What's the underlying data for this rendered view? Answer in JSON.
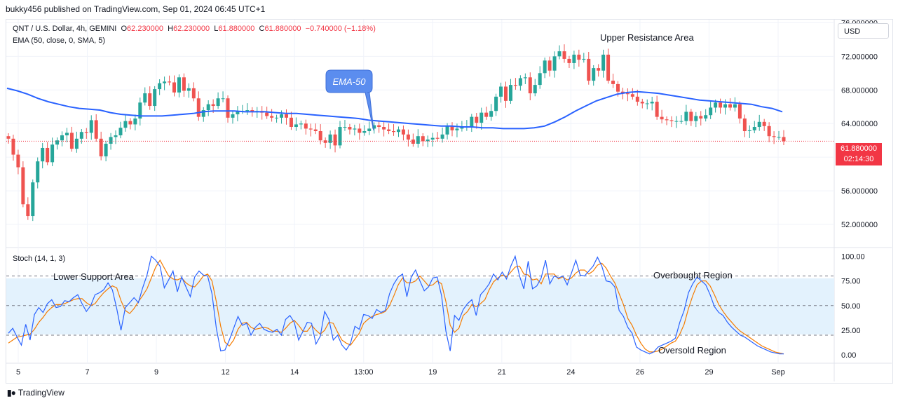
{
  "header": {
    "published": "bukky456 published on TradingView.com, Sep 01, 2024 06:45 UTC+1"
  },
  "currency": "USD",
  "legend": {
    "symbol": "QNT / U.S. Dollar, 4h, GEMINI",
    "o_label": "O",
    "o_value": "62.230000",
    "h_label": "H",
    "h_value": "62.230000",
    "l_label": "L",
    "l_value": "61.880000",
    "c_label": "C",
    "c_value": "61.880000",
    "change": "−0.740000 (−1.18%)",
    "ema": "EMA (50, close, 0, SMA, 5)",
    "stoch": "Stoch (14, 1, 3)"
  },
  "last_price": {
    "value": "61.880000",
    "countdown": "02:14:30"
  },
  "annotations": {
    "upper_resistance": "Upper Resistance Area",
    "ema_callout": "EMA-50",
    "lower_support": "Lower Support Area",
    "overbought": "Overbought Region",
    "oversold": "Oversold Region"
  },
  "footer": {
    "brand": "TradingView",
    "logo": "tv-logo-icon"
  },
  "colors": {
    "up": "#26a69a",
    "down": "#ef5350",
    "ema": "#2962ff",
    "stoch_k": "#2962ff",
    "stoch_d": "#f57c00",
    "band": "#e3f2fd",
    "callout": "#5b8def"
  },
  "chart_data": [
    {
      "type": "candlestick",
      "title": "QNT / U.S. Dollar, 4h, GEMINI",
      "ylim": [
        49.5,
        76.2
      ],
      "y_ticks": [
        "76.000000",
        "72.000000",
        "68.000000",
        "64.000000",
        "60.000000",
        "56.000000",
        "52.000000"
      ],
      "x_ticks": [
        "5",
        "7",
        "9",
        "12",
        "14",
        "13:00",
        "19",
        "21",
        "24",
        "26",
        "29",
        "Sep"
      ],
      "close": [
        62.2,
        60.3,
        58.8,
        54.4,
        53.0,
        57.0,
        59.5,
        61.1,
        59.4,
        61.5,
        62.0,
        62.6,
        62.9,
        61.0,
        62.2,
        63.0,
        62.9,
        64.4,
        62.2,
        60.1,
        61.6,
        62.4,
        62.6,
        63.5,
        64.3,
        63.9,
        64.6,
        66.5,
        67.6,
        66.1,
        68.1,
        68.8,
        69.0,
        68.9,
        67.7,
        69.5,
        67.9,
        68.2,
        67.0,
        64.8,
        65.6,
        66.3,
        66.1,
        67.0,
        67.0,
        64.7,
        65.1,
        65.5,
        65.5,
        65.6,
        65.4,
        65.5,
        65.3,
        64.9,
        64.7,
        64.7,
        65.1,
        64.7,
        63.6,
        63.9,
        64.0,
        63.4,
        63.3,
        63.1,
        62.0,
        61.7,
        62.7,
        61.4,
        63.6,
        63.6,
        63.3,
        63.4,
        62.9,
        63.1,
        63.4,
        63.8,
        63.6,
        63.3,
        63.1,
        63.0,
        63.3,
        62.7,
        62.1,
        61.6,
        62.5,
        61.9,
        62.1,
        62.3,
        62.2,
        62.7,
        63.7,
        63.2,
        63.4,
        63.6,
        63.6,
        64.8,
        64.1,
        65.3,
        64.8,
        65.5,
        67.2,
        68.4,
        66.7,
        68.6,
        68.5,
        69.4,
        69.5,
        67.6,
        68.6,
        70.0,
        71.5,
        70.3,
        72.0,
        72.6,
        71.7,
        71.2,
        72.2,
        71.6,
        71.7,
        69.1,
        70.6,
        70.3,
        72.2,
        69.1,
        68.7,
        67.8,
        67.6,
        67.5,
        67.2,
        66.6,
        66.4,
        66.4,
        66.6,
        64.8,
        64.5,
        64.4,
        64.3,
        64.3,
        64.3,
        65.4,
        64.3,
        64.9,
        64.6,
        65.0,
        65.9,
        66.5,
        65.9,
        66.3,
        65.9,
        66.3,
        64.6,
        63.1,
        63.2,
        63.6,
        64.2,
        63.7,
        62.5,
        62.4,
        62.4,
        61.9
      ],
      "ema": [
        68.2,
        67.9,
        67.5,
        67.0,
        66.6,
        66.3,
        66.0,
        65.8,
        65.7,
        65.6,
        65.3,
        65.1,
        65.0,
        64.9,
        64.9,
        64.9,
        65.0,
        65.1,
        65.2,
        65.4,
        65.5,
        65.5,
        65.5,
        65.4,
        65.4,
        65.4,
        65.3,
        65.2,
        65.2,
        65.1,
        65.0,
        64.9,
        64.8,
        64.7,
        64.6,
        64.4,
        64.3,
        64.2,
        64.1,
        64.0,
        63.9,
        63.8,
        63.7,
        63.7,
        63.6,
        63.6,
        63.5,
        63.5,
        63.4,
        63.4,
        63.4,
        63.5,
        63.7,
        64.2,
        64.8,
        65.5,
        66.1,
        66.7,
        67.1,
        67.5,
        67.7,
        67.8,
        67.7,
        67.6,
        67.4,
        67.2,
        67.0,
        66.8,
        66.7,
        66.6,
        66.5,
        66.4,
        66.3,
        66.0,
        65.8,
        65.4
      ]
    },
    {
      "type": "line",
      "title": "Stoch (14, 1, 3)",
      "ylim": [
        -7,
        106
      ],
      "y_ticks": [
        "100.00",
        "75.00",
        "50.00",
        "25.00",
        "0.00"
      ],
      "levels": [
        80,
        50,
        20
      ],
      "series": [
        {
          "name": "K",
          "values": [
            22,
            27,
            18,
            10,
            31,
            15,
            41,
            48,
            43,
            52,
            56,
            48,
            49,
            55,
            54,
            58,
            61,
            52,
            44,
            50,
            61,
            63,
            66,
            73,
            66,
            47,
            25,
            48,
            53,
            58,
            53,
            68,
            81,
            100,
            96,
            90,
            68,
            76,
            85,
            64,
            79,
            69,
            59,
            79,
            85,
            81,
            80,
            62,
            27,
            4,
            5,
            15,
            27,
            39,
            30,
            32,
            20,
            28,
            32,
            26,
            24,
            23,
            26,
            20,
            36,
            40,
            33,
            15,
            24,
            33,
            32,
            11,
            19,
            44,
            36,
            15,
            20,
            10,
            5,
            12,
            29,
            26,
            41,
            40,
            37,
            46,
            43,
            45,
            62,
            72,
            79,
            82,
            59,
            79,
            86,
            75,
            65,
            69,
            78,
            79,
            60,
            24,
            4,
            40,
            35,
            46,
            52,
            56,
            40,
            61,
            66,
            72,
            82,
            76,
            84,
            77,
            90,
            100,
            80,
            67,
            95,
            67,
            70,
            78,
            96,
            72,
            80,
            78,
            80,
            71,
            83,
            96,
            81,
            80,
            85,
            90,
            99,
            90,
            75,
            74,
            69,
            45,
            39,
            28,
            22,
            8,
            5,
            3,
            1,
            3,
            8,
            10,
            12,
            14,
            17,
            33,
            45,
            63,
            72,
            79,
            75,
            71,
            61,
            49,
            43,
            40,
            33,
            28,
            24,
            20,
            18,
            15,
            12,
            9,
            7,
            5,
            3,
            2,
            1,
            1
          ]
        },
        {
          "name": "D",
          "values": [
            12,
            15,
            18,
            19,
            20,
            21,
            26,
            33,
            38,
            44,
            48,
            51,
            51,
            52,
            54,
            56,
            57,
            57,
            53,
            50,
            52,
            58,
            63,
            67,
            70,
            68,
            55,
            45,
            42,
            47,
            54,
            60,
            67,
            78,
            89,
            96,
            88,
            80,
            77,
            76,
            78,
            73,
            70,
            69,
            74,
            80,
            82,
            75,
            54,
            29,
            13,
            9,
            15,
            26,
            32,
            33,
            28,
            26,
            27,
            28,
            27,
            24,
            24,
            23,
            27,
            32,
            35,
            30,
            24,
            24,
            30,
            25,
            21,
            25,
            33,
            32,
            23,
            15,
            12,
            10,
            16,
            22,
            32,
            36,
            39,
            41,
            42,
            44,
            50,
            60,
            71,
            78,
            73,
            73,
            75,
            80,
            75,
            70,
            71,
            75,
            72,
            54,
            30,
            23,
            27,
            40,
            44,
            51,
            49,
            52,
            56,
            66,
            74,
            78,
            81,
            79,
            84,
            89,
            90,
            82,
            81,
            76,
            77,
            72,
            82,
            82,
            82,
            77,
            79,
            76,
            78,
            83,
            86,
            86,
            82,
            85,
            91,
            93,
            88,
            80,
            73,
            62,
            51,
            37,
            30,
            20,
            12,
            6,
            3,
            3,
            4,
            6,
            9,
            12,
            14,
            21,
            31,
            47,
            60,
            71,
            75,
            75,
            70,
            61,
            51,
            44,
            38,
            33,
            28,
            24,
            21,
            18,
            15,
            12,
            9,
            7,
            5,
            3,
            2,
            1
          ]
        }
      ]
    }
  ]
}
